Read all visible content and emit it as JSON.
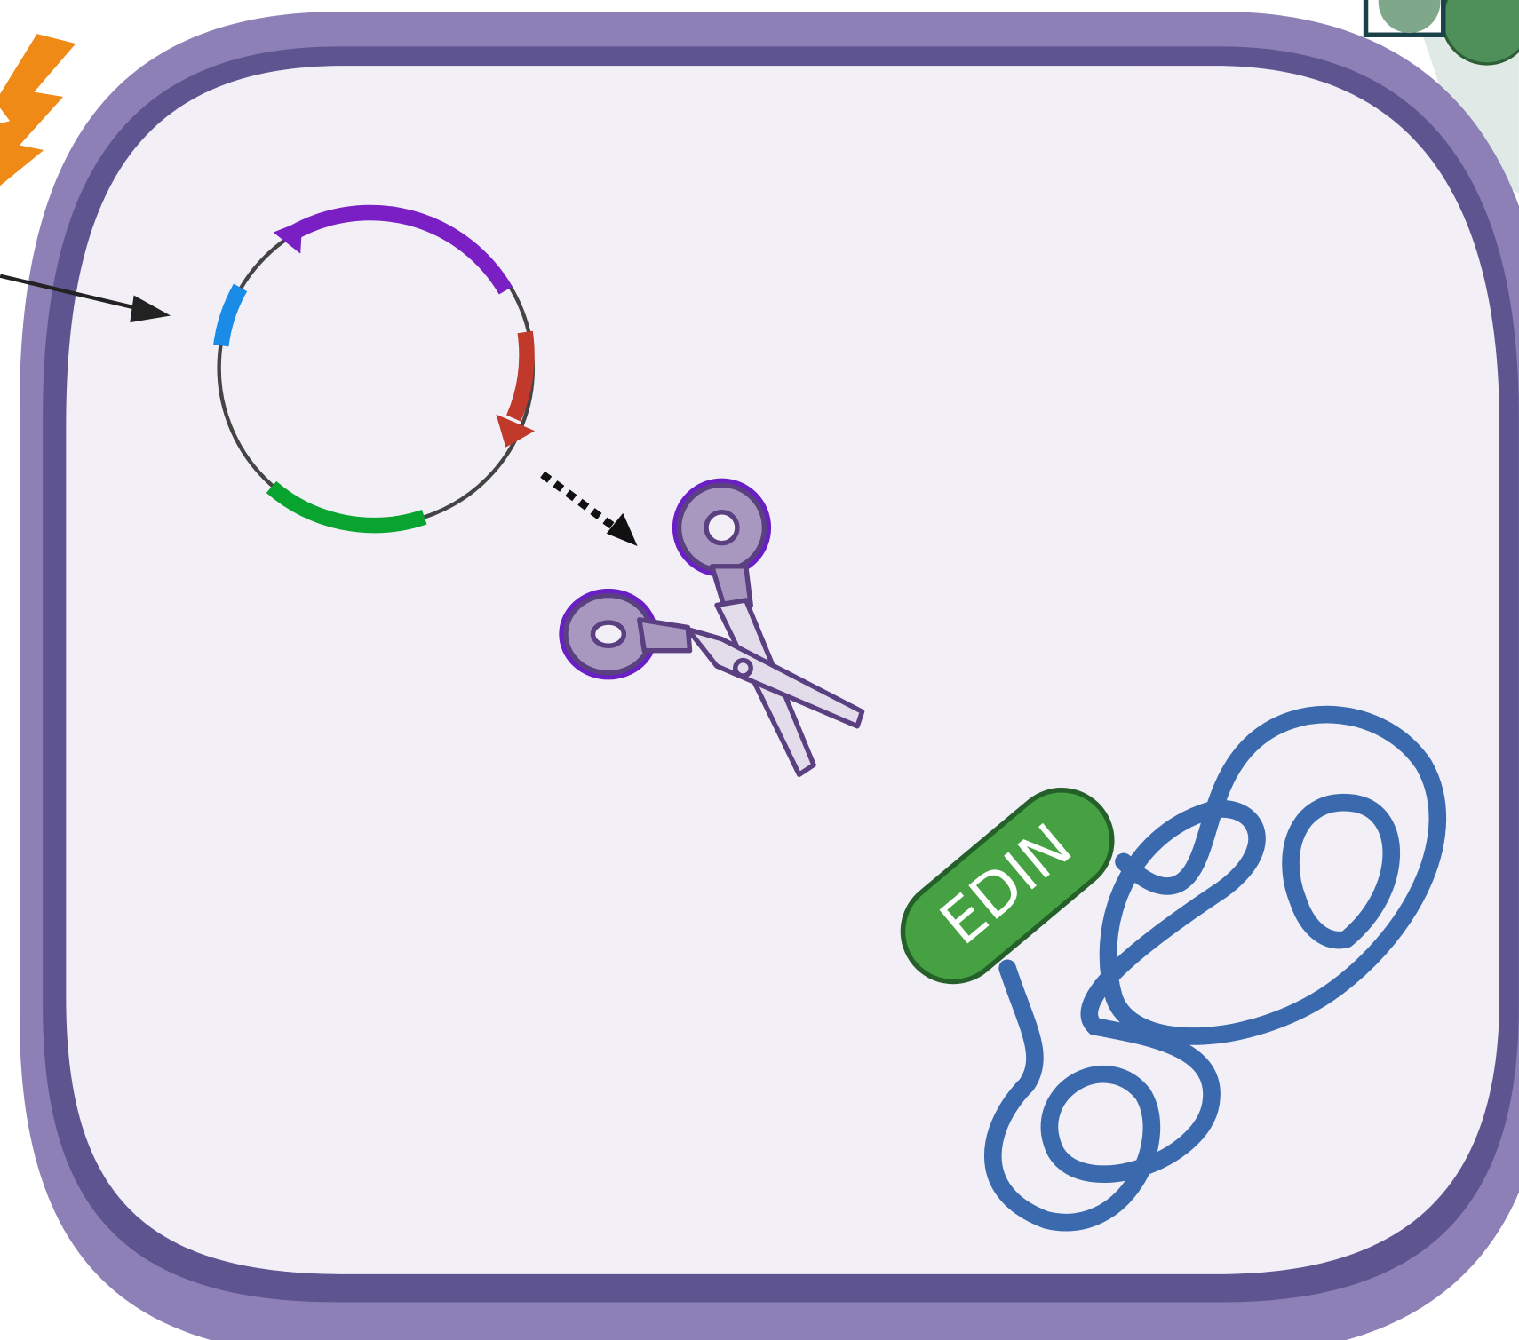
{
  "nodes": [
    {
      "label": "EDIN"
    }
  ]
}
